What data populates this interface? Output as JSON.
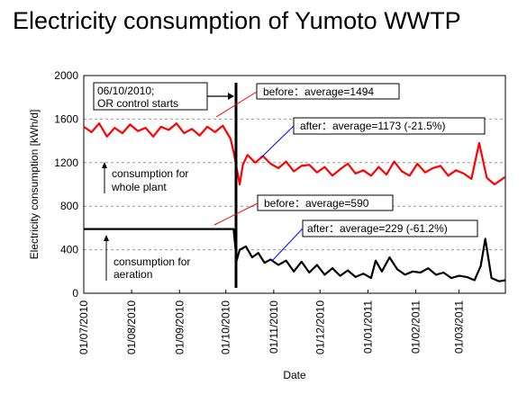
{
  "title": "Electricity consumption of Yumoto WWTP",
  "chart_data": {
    "type": "line",
    "xlabel": "Date",
    "ylabel": "Electricity consumption [kWh/d]",
    "ylim": [
      0,
      2000
    ],
    "yticks": [
      0,
      400,
      800,
      1200,
      1600,
      2000
    ],
    "xlim": [
      "2010-07-01",
      "2011-03-31"
    ],
    "xticks": [
      {
        "date": "2010-07-01",
        "label": "01/07/2010"
      },
      {
        "date": "2010-08-01",
        "label": "01/08/2010"
      },
      {
        "date": "2010-09-01",
        "label": "01/09/2010"
      },
      {
        "date": "2010-10-01",
        "label": "01/10/2010"
      },
      {
        "date": "2010-11-01",
        "label": "01/11/2010"
      },
      {
        "date": "2010-12-01",
        "label": "01/12/2010"
      },
      {
        "date": "2011-01-01",
        "label": "01/01/2011"
      },
      {
        "date": "2011-02-01",
        "label": "01/02/2011"
      },
      {
        "date": "2011-03-01",
        "label": "01/03/2011"
      }
    ],
    "grid": "horizontal-dashed",
    "series": [
      {
        "color": "#ff0000",
        "x": [
          "2010-07-01",
          "2010-07-06",
          "2010-07-11",
          "2010-07-16",
          "2010-07-21",
          "2010-07-26",
          "2010-07-31",
          "2010-08-05",
          "2010-08-10",
          "2010-08-15",
          "2010-08-20",
          "2010-08-25",
          "2010-08-30",
          "2010-09-04",
          "2010-09-09",
          "2010-09-14",
          "2010-09-19",
          "2010-09-24",
          "2010-09-29",
          "2010-10-04",
          "2010-10-06",
          "2010-10-08",
          "2010-10-10",
          "2010-10-12",
          "2010-10-15",
          "2010-10-20",
          "2010-10-25",
          "2010-10-30",
          "2010-11-04",
          "2010-11-09",
          "2010-11-14",
          "2010-11-19",
          "2010-11-24",
          "2010-11-29",
          "2010-12-04",
          "2010-12-09",
          "2010-12-14",
          "2010-12-19",
          "2010-12-24",
          "2010-12-29",
          "2011-01-03",
          "2011-01-08",
          "2011-01-13",
          "2011-01-18",
          "2011-01-23",
          "2011-01-28",
          "2011-02-02",
          "2011-02-07",
          "2011-02-12",
          "2011-02-17",
          "2011-02-22",
          "2011-02-27",
          "2011-03-04",
          "2011-03-09",
          "2011-03-14",
          "2011-03-19",
          "2011-03-24",
          "2011-03-31"
        ],
        "y": [
          1530,
          1480,
          1560,
          1440,
          1520,
          1470,
          1550,
          1490,
          1520,
          1440,
          1530,
          1500,
          1560,
          1470,
          1510,
          1450,
          1530,
          1480,
          1540,
          1420,
          1300,
          1150,
          1000,
          1180,
          1270,
          1200,
          1260,
          1190,
          1150,
          1210,
          1120,
          1170,
          1180,
          1110,
          1160,
          1080,
          1140,
          1190,
          1100,
          1130,
          1080,
          1160,
          1090,
          1210,
          1120,
          1080,
          1190,
          1110,
          1150,
          1170,
          1080,
          1130,
          1100,
          1050,
          1380,
          1060,
          1000,
          1070
        ]
      },
      {
        "color": "#000000",
        "x": [
          "2010-07-01",
          "2010-07-15",
          "2010-08-01",
          "2010-08-15",
          "2010-09-01",
          "2010-09-15",
          "2010-10-01",
          "2010-10-06",
          "2010-10-08",
          "2010-10-10",
          "2010-10-14",
          "2010-10-18",
          "2010-10-22",
          "2010-10-26",
          "2010-10-30",
          "2010-11-04",
          "2010-11-09",
          "2010-11-14",
          "2010-11-19",
          "2010-11-24",
          "2010-11-29",
          "2010-12-04",
          "2010-12-09",
          "2010-12-14",
          "2010-12-19",
          "2010-12-24",
          "2010-12-29",
          "2011-01-03",
          "2011-01-06",
          "2011-01-10",
          "2011-01-15",
          "2011-01-20",
          "2011-01-25",
          "2011-01-30",
          "2011-02-04",
          "2011-02-09",
          "2011-02-14",
          "2011-02-19",
          "2011-02-24",
          "2011-03-01",
          "2011-03-06",
          "2011-03-11",
          "2011-03-15",
          "2011-03-18",
          "2011-03-22",
          "2011-03-27",
          "2011-03-31"
        ],
        "y": [
          590,
          590,
          590,
          590,
          590,
          590,
          590,
          590,
          300,
          400,
          430,
          330,
          370,
          280,
          310,
          260,
          300,
          200,
          290,
          190,
          260,
          170,
          230,
          160,
          210,
          150,
          180,
          140,
          300,
          200,
          330,
          220,
          170,
          200,
          190,
          230,
          170,
          190,
          140,
          160,
          150,
          120,
          250,
          500,
          140,
          110,
          120
        ]
      }
    ],
    "annotations": [
      {
        "text": "06/10/2010;",
        "date": "2010-10-06"
      },
      {
        "text": "OR control starts"
      },
      {
        "text": "before：average=1494",
        "value": 1494
      },
      {
        "text": "after：average=1173 (-21.5%)",
        "value": 1173
      },
      {
        "text": "before：average=590",
        "value": 590
      },
      {
        "text": "after：average=229 (-61.2%)",
        "value": 229
      },
      {
        "text": "consumption   for"
      },
      {
        "text": "whole plant"
      },
      {
        "text": "consumption   for"
      },
      {
        "text": "aeration"
      }
    ]
  }
}
